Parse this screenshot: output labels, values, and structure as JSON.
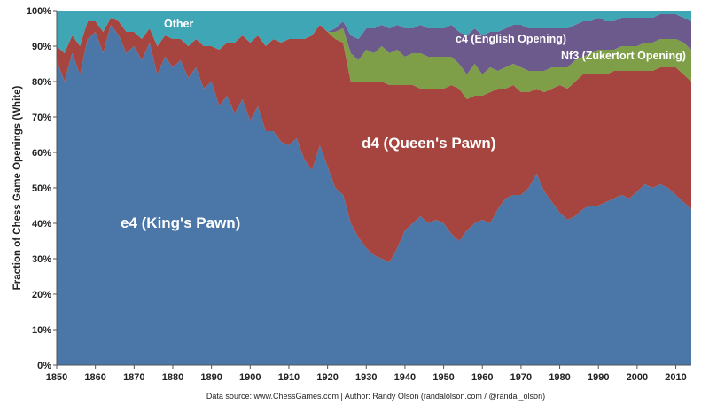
{
  "chart_data": {
    "type": "area",
    "stacked": true,
    "title": "",
    "xlabel": "",
    "ylabel": "Fraction of Chess Game Openings (White)",
    "xlim": [
      1850,
      2014
    ],
    "ylim": [
      0,
      100
    ],
    "x_ticks": [
      1850,
      1860,
      1870,
      1880,
      1890,
      1900,
      1910,
      1920,
      1930,
      1940,
      1950,
      1960,
      1970,
      1980,
      1990,
      2000,
      2010
    ],
    "y_ticks": [
      "0%",
      "10%",
      "20%",
      "30%",
      "40%",
      "50%",
      "60%",
      "70%",
      "80%",
      "90%",
      "100%"
    ],
    "grid": false,
    "legend": "none (inline labels)",
    "x": [
      1850,
      1852,
      1854,
      1856,
      1858,
      1860,
      1862,
      1864,
      1866,
      1868,
      1870,
      1872,
      1874,
      1876,
      1878,
      1880,
      1882,
      1884,
      1886,
      1888,
      1890,
      1892,
      1894,
      1896,
      1898,
      1900,
      1902,
      1904,
      1906,
      1908,
      1910,
      1912,
      1914,
      1916,
      1918,
      1920,
      1922,
      1924,
      1926,
      1928,
      1930,
      1932,
      1934,
      1936,
      1938,
      1940,
      1942,
      1944,
      1946,
      1948,
      1950,
      1952,
      1954,
      1956,
      1958,
      1960,
      1962,
      1964,
      1966,
      1968,
      1970,
      1972,
      1974,
      1976,
      1978,
      1980,
      1982,
      1984,
      1986,
      1988,
      1990,
      1992,
      1994,
      1996,
      1998,
      2000,
      2002,
      2004,
      2006,
      2008,
      2010,
      2012,
      2014
    ],
    "series": [
      {
        "name": "e4 (King's Pawn)",
        "color": "#4a76a8",
        "values": [
          86,
          80,
          88,
          82,
          92,
          94,
          88,
          96,
          93,
          88,
          90,
          86,
          91,
          82,
          87,
          84,
          86,
          81,
          84,
          78,
          80,
          73,
          76,
          71,
          75,
          69,
          73,
          66,
          66,
          63,
          62,
          64,
          58,
          55,
          62,
          56,
          50,
          48,
          40,
          36,
          33,
          31,
          30,
          29,
          33,
          38,
          40,
          42,
          40,
          41,
          40,
          37,
          35,
          38,
          40,
          41,
          40,
          44,
          47,
          48,
          48,
          50,
          54,
          49,
          46,
          43,
          41,
          42,
          44,
          45,
          45,
          46,
          47,
          48,
          47,
          49,
          51,
          50,
          51,
          50,
          48,
          46,
          44
        ]
      },
      {
        "name": "d4 (Queen's Pawn)",
        "color": "#a6453f",
        "values": [
          4,
          8,
          5,
          8,
          5,
          3,
          6,
          2,
          4,
          6,
          4,
          6,
          4,
          8,
          6,
          8,
          6,
          9,
          8,
          12,
          10,
          16,
          15,
          20,
          18,
          22,
          20,
          24,
          26,
          28,
          30,
          28,
          34,
          38,
          34,
          38,
          42,
          43,
          40,
          44,
          47,
          49,
          50,
          50,
          46,
          41,
          39,
          36,
          38,
          37,
          38,
          42,
          43,
          37,
          36,
          35,
          37,
          34,
          31,
          31,
          29,
          27,
          24,
          28,
          32,
          36,
          37,
          38,
          38,
          37,
          37,
          36,
          36,
          35,
          36,
          34,
          32,
          33,
          33,
          34,
          36,
          36,
          36
        ]
      },
      {
        "name": "c4 (English Opening)",
        "color": "#7e9e47",
        "values": [
          0,
          0,
          0,
          0,
          0,
          0,
          0,
          0,
          0,
          0,
          0,
          0,
          0,
          0,
          0,
          0,
          0,
          0,
          0,
          0,
          0,
          0,
          0,
          0,
          0,
          0,
          0,
          0,
          0,
          0,
          0,
          0,
          0,
          0,
          0,
          0,
          2,
          4,
          8,
          6,
          9,
          8,
          10,
          9,
          10,
          8,
          9,
          10,
          9,
          9,
          9,
          8,
          7,
          7,
          9,
          6,
          7,
          5,
          6,
          6,
          7,
          6,
          5,
          6,
          6,
          5,
          6,
          6,
          5,
          6,
          7,
          7,
          6,
          7,
          7,
          7,
          8,
          8,
          8,
          8,
          8,
          9,
          9
        ]
      },
      {
        "name": "Nf3 (Zukertort Opening)",
        "color": "#6d5a8c",
        "values": [
          0,
          0,
          0,
          0,
          0,
          0,
          0,
          0,
          0,
          0,
          0,
          0,
          0,
          0,
          0,
          0,
          0,
          0,
          0,
          0,
          0,
          0,
          0,
          0,
          0,
          0,
          0,
          0,
          0,
          0,
          0,
          0,
          0,
          0,
          0,
          0,
          1,
          2,
          5,
          6,
          6,
          7,
          6,
          7,
          7,
          8,
          7,
          8,
          8,
          8,
          8,
          9,
          9,
          11,
          10,
          11,
          10,
          11,
          11,
          11,
          12,
          12,
          12,
          12,
          11,
          11,
          11,
          10,
          10,
          9,
          9,
          8,
          8,
          8,
          8,
          8,
          7,
          7,
          7,
          7,
          7,
          7,
          8
        ]
      },
      {
        "name": "Other",
        "color": "#3fa6b6",
        "values": [
          10,
          12,
          7,
          10,
          3,
          3,
          6,
          2,
          3,
          6,
          6,
          8,
          5,
          10,
          7,
          8,
          8,
          10,
          8,
          10,
          10,
          11,
          9,
          9,
          7,
          9,
          7,
          10,
          8,
          9,
          8,
          8,
          8,
          7,
          4,
          6,
          5,
          3,
          7,
          8,
          5,
          5,
          4,
          5,
          4,
          5,
          5,
          4,
          5,
          5,
          5,
          4,
          6,
          7,
          5,
          7,
          6,
          6,
          5,
          4,
          4,
          5,
          5,
          5,
          5,
          5,
          5,
          4,
          3,
          3,
          2,
          3,
          3,
          2,
          2,
          2,
          2,
          2,
          1,
          1,
          1,
          2,
          3
        ]
      }
    ]
  },
  "labels": {
    "e4": "e4 (King's Pawn)",
    "d4": "d4 (Queen's Pawn)",
    "c4": "c4 (English Opening)",
    "nf3": "Nf3 (Zukertort Opening)",
    "other": "Other"
  },
  "source": "Data source: www.ChessGames.com | Author: Randy Olson (randalolson.com / @randal_olson)"
}
